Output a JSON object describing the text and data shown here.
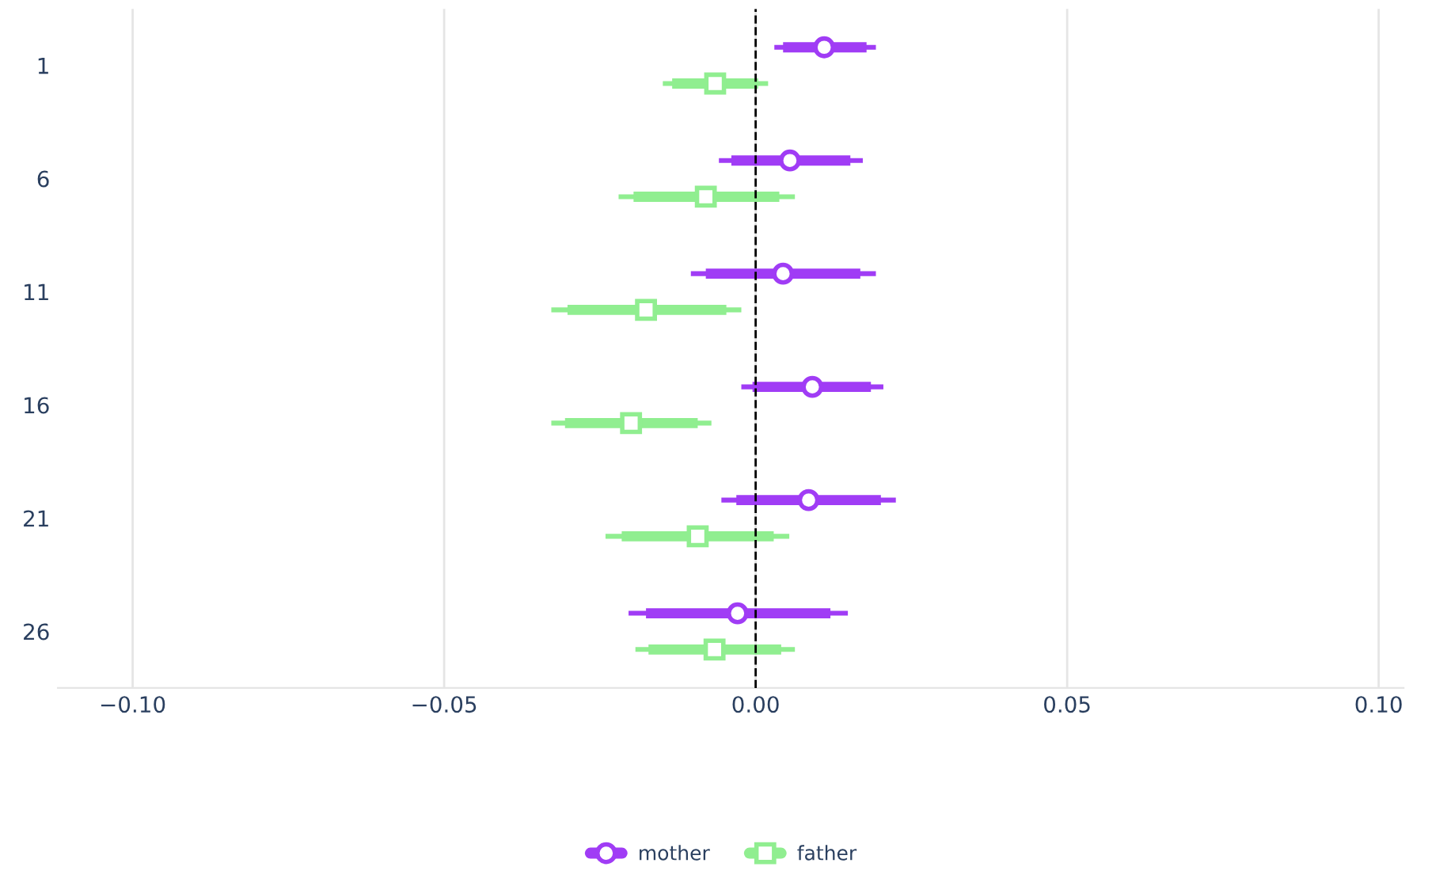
{
  "chart_data": {
    "type": "scatter",
    "orientation": "horizontal",
    "categories": [
      "1",
      "6",
      "11",
      "16",
      "21",
      "26"
    ],
    "xlim": [
      -0.112,
      0.104
    ],
    "xticks": [
      {
        "value": -0.1,
        "label": "−0.10"
      },
      {
        "value": -0.05,
        "label": "−0.05"
      },
      {
        "value": 0,
        "label": "0.00"
      },
      {
        "value": 0.05,
        "label": "0.05"
      },
      {
        "value": 0.1,
        "label": "0.10"
      }
    ],
    "grid": "x",
    "legend": "bottom",
    "ref_lines": [
      {
        "axis": "x",
        "value": 0,
        "color": "#000000",
        "line_style": "dashed"
      }
    ],
    "series": [
      {
        "type": "bar",
        "color": "#a03cf5",
        "base": [
          0.0044,
          -0.0039,
          -0.008,
          -0.0005,
          -0.0031,
          -0.0176
        ],
        "values": [
          0.0134,
          0.0191,
          0.0248,
          0.019,
          0.0232,
          0.0296
        ]
      },
      {
        "type": "bar",
        "color": "#90ee90",
        "base": [
          -0.0134,
          -0.0196,
          -0.0302,
          -0.0306,
          -0.0215,
          -0.0172
        ],
        "values": [
          0.0138,
          0.0234,
          0.0255,
          0.0213,
          0.0244,
          0.0213
        ]
      },
      {
        "name": "mother",
        "color": "#a03cf5",
        "marker": "circle",
        "values": [
          0.011,
          0.0055,
          0.0044,
          0.0091,
          0.0085,
          -0.0029
        ],
        "errors": [
          [
            0.003,
            0.0193
          ],
          [
            -0.0059,
            0.0172
          ],
          [
            -0.0104,
            0.0193
          ],
          [
            -0.0023,
            0.0205
          ],
          [
            -0.0055,
            0.0225
          ],
          [
            -0.0204,
            0.0148
          ]
        ]
      },
      {
        "name": "father",
        "color": "#90ee90",
        "marker": "square",
        "values": [
          -0.0065,
          -0.008,
          -0.0176,
          -0.02,
          -0.0093,
          -0.0066
        ],
        "errors": [
          [
            -0.0149,
            0.002
          ],
          [
            -0.022,
            0.0063
          ],
          [
            -0.0328,
            -0.0023
          ],
          [
            -0.0328,
            -0.0071
          ],
          [
            -0.0241,
            0.0054
          ],
          [
            -0.0193,
            0.0063
          ]
        ]
      }
    ]
  }
}
